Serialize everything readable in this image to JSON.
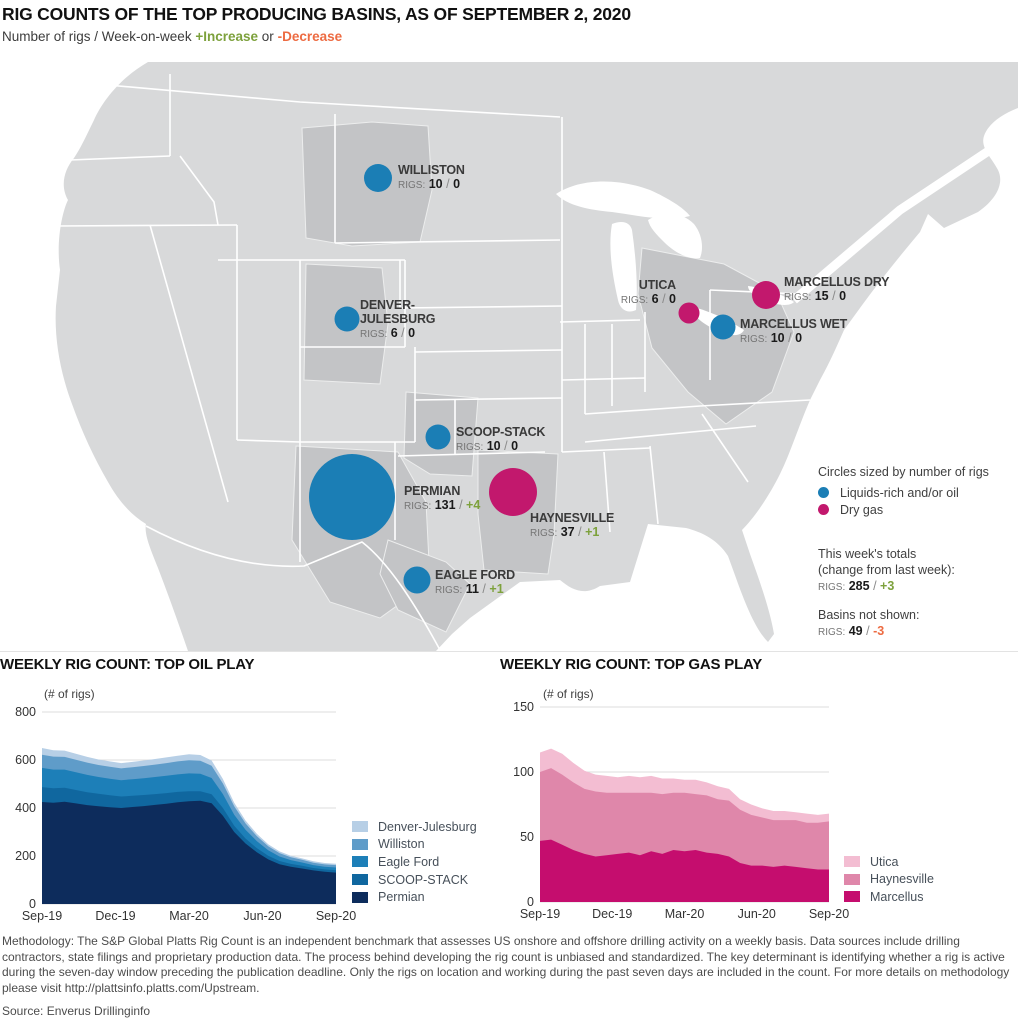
{
  "header": {
    "title": "RIG COUNTS OF THE TOP PRODUCING BASINS, AS OF SEPTEMBER 2, 2020",
    "subtitle_prefix": "Number of rigs / Week-on-week",
    "increase_label": "+Increase",
    "or_label": "or",
    "decrease_label": "-Decrease"
  },
  "labels": {
    "rigs_prefix": "RIGS:",
    "slash": "/"
  },
  "colors": {
    "oil": "#1b7eb5",
    "gas": "#c2186d",
    "increase": "#7da13c",
    "decrease": "#ed6b42"
  },
  "map": {
    "basins": [
      {
        "id": "williston",
        "name": "WILLISTON",
        "rigs": "10",
        "change": "0",
        "type": "oil"
      },
      {
        "id": "denver-julesburg",
        "name": "DENVER-JULESBURG",
        "rigs": "6",
        "change": "0",
        "type": "oil"
      },
      {
        "id": "utica",
        "name": "UTICA",
        "rigs": "6",
        "change": "0",
        "type": "gas"
      },
      {
        "id": "marcellus-dry",
        "name": "MARCELLUS DRY",
        "rigs": "15",
        "change": "0",
        "type": "gas"
      },
      {
        "id": "marcellus-wet",
        "name": "MARCELLUS WET",
        "rigs": "10",
        "change": "0",
        "type": "oil"
      },
      {
        "id": "scoop-stack",
        "name": "SCOOP-STACK",
        "rigs": "10",
        "change": "0",
        "type": "oil"
      },
      {
        "id": "permian",
        "name": "PERMIAN",
        "rigs": "131",
        "change": "+4",
        "type": "oil"
      },
      {
        "id": "haynesville",
        "name": "HAYNESVILLE",
        "rigs": "37",
        "change": "+1",
        "type": "gas"
      },
      {
        "id": "eagle-ford",
        "name": "EAGLE FORD",
        "rigs": "11",
        "change": "+1",
        "type": "oil"
      }
    ],
    "legend": {
      "sizing_note": "Circles sized by number of rigs",
      "oil_label": "Liquids-rich and/or oil",
      "gas_label": "Dry gas"
    },
    "totals": {
      "line1": "This week's totals",
      "line2": "(change from last week):",
      "rigs": "285",
      "change": "+3"
    },
    "not_shown": {
      "line1": "Basins not shown:",
      "rigs": "49",
      "change": "-3"
    }
  },
  "chart_data": [
    {
      "type": "area",
      "stacked": true,
      "title": "WEEKLY RIG COUNT: TOP OIL PLAY",
      "ylabel": "(# of rigs)",
      "ylim": [
        0,
        800
      ],
      "yticks": [
        0,
        200,
        400,
        600,
        800
      ],
      "xticklabels": [
        "Sep-19",
        "Dec-19",
        "Mar-20",
        "Jun-20",
        "Sep-20"
      ],
      "grid": true,
      "legend_position": "right",
      "x_weeks": [
        0,
        2,
        4,
        6,
        8,
        10,
        12,
        14,
        16,
        18,
        20,
        22,
        24,
        26,
        28,
        30,
        32,
        34,
        36,
        38,
        40,
        42,
        44,
        46,
        48,
        50,
        52
      ],
      "series": [
        {
          "name": "Permian",
          "color": "#0d2c5c",
          "values": [
            425,
            422,
            426,
            419,
            412,
            407,
            403,
            400,
            404,
            408,
            413,
            418,
            424,
            428,
            430,
            420,
            368,
            300,
            252,
            216,
            186,
            166,
            155,
            148,
            140,
            134,
            131
          ]
        },
        {
          "name": "SCOOP-STACK",
          "color": "#10679f",
          "values": [
            62,
            60,
            58,
            56,
            54,
            52,
            50,
            48,
            47,
            46,
            45,
            44,
            43,
            42,
            40,
            37,
            32,
            26,
            21,
            17,
            15,
            13,
            12,
            11,
            10,
            10,
            10
          ]
        },
        {
          "name": "Eagle Ford",
          "color": "#1d7fb8",
          "values": [
            80,
            78,
            76,
            74,
            72,
            70,
            69,
            68,
            69,
            70,
            71,
            72,
            73,
            74,
            73,
            68,
            58,
            46,
            36,
            29,
            23,
            19,
            16,
            14,
            12,
            11,
            11
          ]
        },
        {
          "name": "Williston",
          "color": "#5f9cc9",
          "values": [
            55,
            54,
            53,
            52,
            51,
            50,
            50,
            49,
            50,
            51,
            52,
            53,
            54,
            55,
            54,
            51,
            44,
            35,
            27,
            21,
            17,
            14,
            12,
            11,
            10,
            10,
            10
          ]
        },
        {
          "name": "Denver-Julesburg",
          "color": "#b7cfe6",
          "values": [
            28,
            27,
            26,
            25,
            24,
            23,
            22,
            22,
            22,
            23,
            23,
            24,
            24,
            25,
            24,
            22,
            19,
            15,
            12,
            10,
            8,
            7,
            6,
            6,
            6,
            6,
            6
          ]
        }
      ]
    },
    {
      "type": "area",
      "stacked": true,
      "title": "WEEKLY RIG COUNT: TOP GAS PLAY",
      "ylabel": "(# of rigs)",
      "ylim": [
        0,
        150
      ],
      "yticks": [
        0,
        50,
        100,
        150
      ],
      "xticklabels": [
        "Sep-19",
        "Dec-19",
        "Mar-20",
        "Jun-20",
        "Sep-20"
      ],
      "grid": true,
      "legend_position": "right",
      "x_weeks": [
        0,
        2,
        4,
        6,
        8,
        10,
        12,
        14,
        16,
        18,
        20,
        22,
        24,
        26,
        28,
        30,
        32,
        34,
        36,
        38,
        40,
        42,
        44,
        46,
        48,
        50,
        52
      ],
      "series": [
        {
          "name": "Marcellus",
          "color": "#c50d6e",
          "values": [
            47,
            48,
            44,
            40,
            37,
            35,
            36,
            37,
            38,
            36,
            39,
            37,
            40,
            39,
            40,
            38,
            37,
            35,
            30,
            28,
            28,
            27,
            28,
            27,
            26,
            25,
            25
          ]
        },
        {
          "name": "Haynesville",
          "color": "#df87aa",
          "values": [
            53,
            55,
            54,
            52,
            50,
            50,
            48,
            47,
            46,
            48,
            45,
            46,
            44,
            45,
            43,
            44,
            42,
            43,
            41,
            39,
            37,
            36,
            35,
            36,
            35,
            36,
            37
          ]
        },
        {
          "name": "Utica",
          "color": "#f3bdd2",
          "values": [
            15,
            15,
            16,
            15,
            14,
            13,
            13,
            12,
            13,
            12,
            13,
            12,
            11,
            10,
            11,
            10,
            10,
            9,
            8,
            8,
            7,
            7,
            7,
            6,
            7,
            6,
            6
          ]
        }
      ]
    }
  ],
  "footer": {
    "methodology": "Methodology: The S&P Global Platts Rig Count is an independent benchmark that assesses US onshore and offshore drilling activity on a weekly basis. Data sources include drilling contractors, state filings and proprietary production data. The process behind developing the rig count is unbiased and standardized. The key determinant is identifying whether a rig is active during the seven-day window preceding the publication deadline. Only the rigs on location and working during the past seven days are included in the count. For more details on methodology please visit http://plattsinfo.platts.com/Upstream.",
    "source": "Source: Enverus Drillinginfo"
  }
}
